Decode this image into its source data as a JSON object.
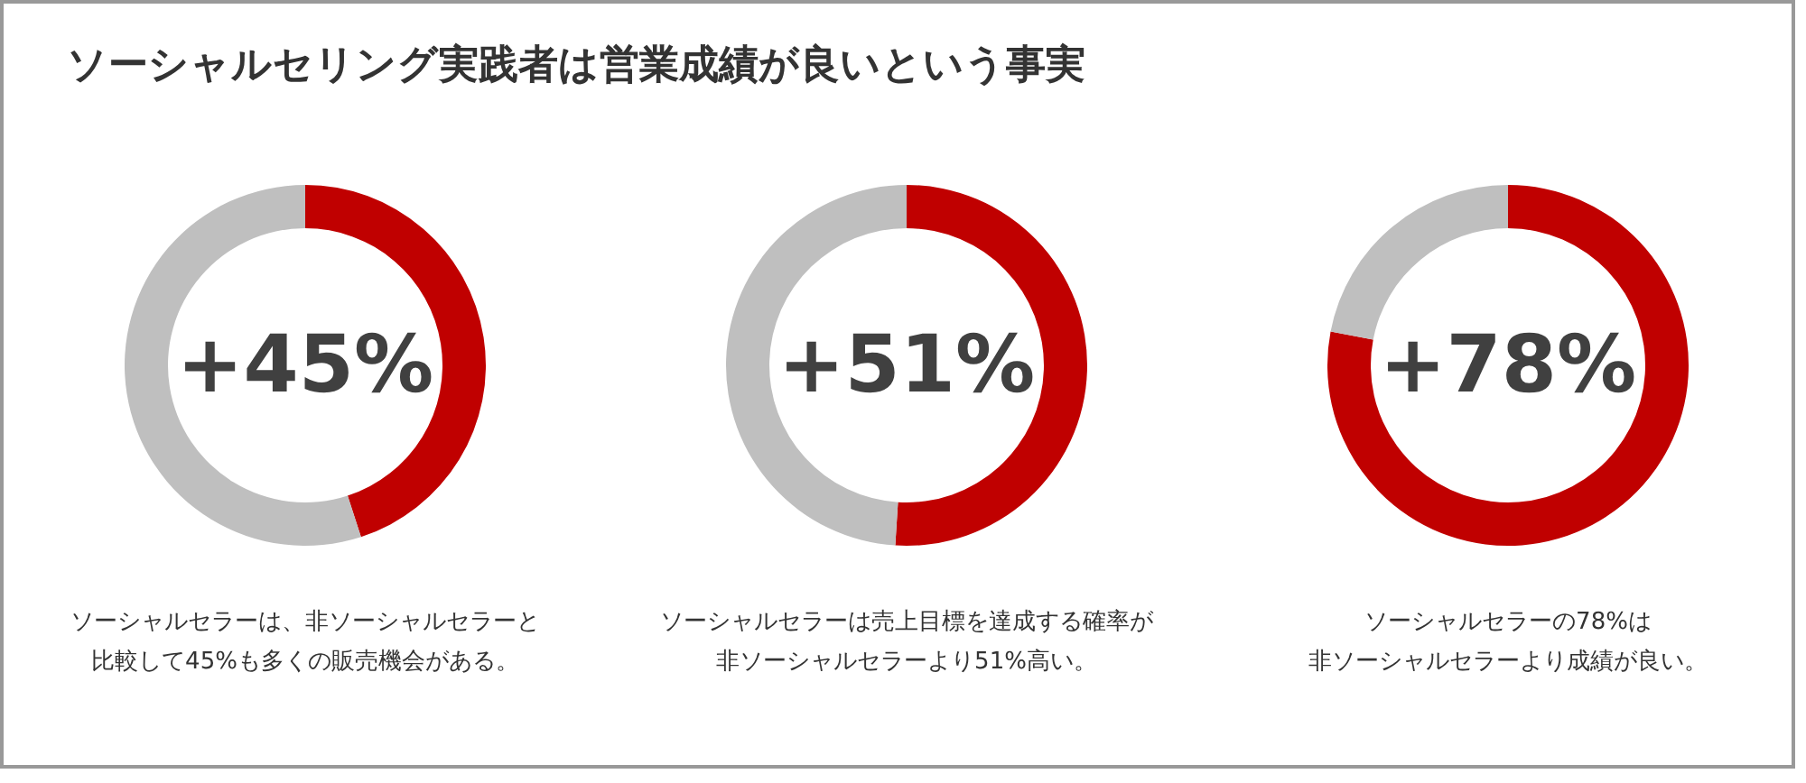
{
  "chart_data": [
    {
      "type": "donut",
      "title": "ソーシャルセリング実践者は営業成績が良いという事実",
      "categories": [
        null,
        null
      ],
      "values": [
        45,
        55
      ],
      "colors": [
        "#c00000",
        "#bfbfbf"
      ],
      "value_labels": [
        "+45%",
        null
      ],
      "annotations": [
        "ソーシャルセラーは、非ソーシャルセラーと",
        "比較して45%も多くの販売機会がある。"
      ]
    },
    {
      "type": "donut",
      "categories": [
        null,
        null
      ],
      "values": [
        51,
        49
      ],
      "colors": [
        "#c00000",
        "#bfbfbf"
      ],
      "value_labels": [
        "+51%",
        null
      ],
      "annotations": [
        "ソーシャルセラーは売上目標を達成する確率が",
        "非ソーシャルセラーより51%高い。"
      ]
    },
    {
      "type": "donut",
      "categories": [
        null,
        null
      ],
      "values": [
        78,
        22
      ],
      "colors": [
        "#c00000",
        "#bfbfbf"
      ],
      "value_labels": [
        "+78%",
        null
      ],
      "annotations": [
        "ソーシャルセラーの78%は",
        "非ソーシャルセラーより成績が良い。"
      ]
    }
  ]
}
